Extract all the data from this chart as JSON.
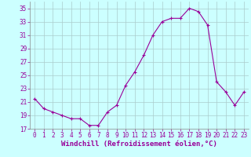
{
  "x": [
    0,
    1,
    2,
    3,
    4,
    5,
    6,
    7,
    8,
    9,
    10,
    11,
    12,
    13,
    14,
    15,
    16,
    17,
    18,
    19,
    20,
    21,
    22,
    23
  ],
  "y": [
    21.5,
    20.0,
    19.5,
    19.0,
    18.5,
    18.5,
    17.5,
    17.5,
    19.5,
    20.5,
    23.5,
    25.5,
    28.0,
    31.0,
    33.0,
    33.5,
    33.5,
    35.0,
    34.5,
    32.5,
    24.0,
    22.5,
    20.5,
    22.5
  ],
  "line_color": "#990099",
  "marker": "+",
  "marker_size": 3,
  "bg_color": "#ccffff",
  "grid_color": "#aacccc",
  "xlabel": "Windchill (Refroidissement éolien,°C)",
  "xlim": [
    -0.5,
    23.5
  ],
  "ylim": [
    17,
    36
  ],
  "yticks": [
    17,
    19,
    21,
    23,
    25,
    27,
    29,
    31,
    33,
    35
  ],
  "xticks": [
    0,
    1,
    2,
    3,
    4,
    5,
    6,
    7,
    8,
    9,
    10,
    11,
    12,
    13,
    14,
    15,
    16,
    17,
    18,
    19,
    20,
    21,
    22,
    23
  ],
  "tick_fontsize": 5.5,
  "xlabel_fontsize": 6.5,
  "xlabel_fontweight": "bold"
}
